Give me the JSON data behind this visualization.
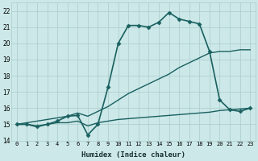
{
  "xlabel": "Humidex (Indice chaleur)",
  "xlim": [
    -0.5,
    23.5
  ],
  "ylim": [
    14,
    22.5
  ],
  "yticks": [
    14,
    15,
    16,
    17,
    18,
    19,
    20,
    21,
    22
  ],
  "xticks": [
    0,
    1,
    2,
    3,
    4,
    5,
    6,
    7,
    8,
    9,
    10,
    11,
    12,
    13,
    14,
    15,
    16,
    17,
    18,
    19,
    20,
    21,
    22,
    23
  ],
  "background_color": "#cce8e8",
  "grid_color": "#aacccc",
  "line_color": "#1a6060",
  "series": [
    {
      "x": [
        0,
        1,
        2,
        3,
        4,
        5,
        6,
        7,
        8,
        9,
        10,
        11,
        12,
        13,
        14,
        15,
        16,
        17,
        18,
        19,
        20,
        21,
        22,
        23
      ],
      "y": [
        15.0,
        15.0,
        14.9,
        15.0,
        15.1,
        15.1,
        15.2,
        14.9,
        15.1,
        15.2,
        15.3,
        15.35,
        15.4,
        15.45,
        15.5,
        15.55,
        15.6,
        15.65,
        15.7,
        15.75,
        15.85,
        15.9,
        15.95,
        16.0
      ],
      "marker": null,
      "linewidth": 1.0
    },
    {
      "x": [
        0,
        1,
        2,
        3,
        4,
        5,
        6,
        7,
        8,
        9,
        10,
        11,
        12,
        13,
        14,
        15,
        16,
        17,
        18,
        19,
        20,
        21,
        22,
        23
      ],
      "y": [
        15.0,
        15.1,
        15.2,
        15.3,
        15.4,
        15.5,
        15.7,
        15.5,
        15.8,
        16.1,
        16.5,
        16.9,
        17.2,
        17.5,
        17.8,
        18.1,
        18.5,
        18.8,
        19.1,
        19.4,
        19.5,
        19.5,
        19.6,
        19.6
      ],
      "marker": null,
      "linewidth": 1.0
    },
    {
      "x": [
        0,
        1,
        2,
        3,
        4,
        5,
        6,
        7,
        8,
        9,
        10,
        11,
        12,
        13,
        14,
        15,
        16,
        17,
        18,
        19,
        20,
        21,
        22,
        23
      ],
      "y": [
        15.0,
        15.0,
        14.85,
        15.0,
        15.2,
        15.5,
        15.55,
        14.35,
        15.0,
        17.3,
        20.0,
        21.1,
        21.1,
        21.0,
        21.3,
        21.9,
        21.5,
        21.35,
        21.2,
        19.5,
        16.5,
        15.9,
        15.8,
        16.0
      ],
      "marker": "D",
      "markersize": 2.5,
      "linewidth": 1.2
    }
  ]
}
